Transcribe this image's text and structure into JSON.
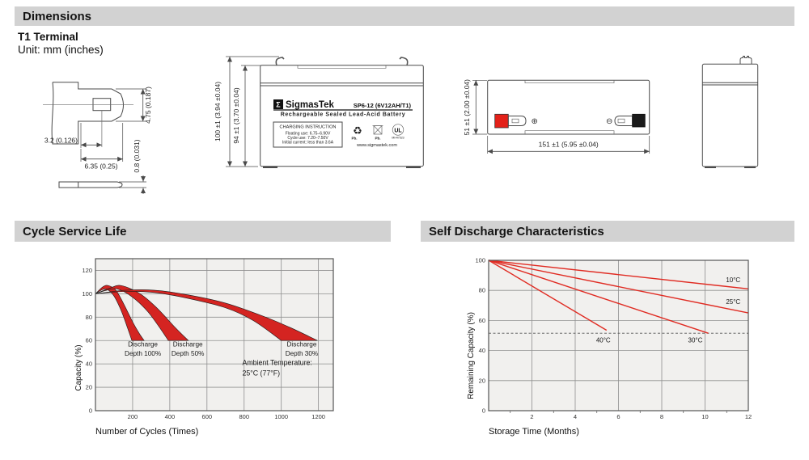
{
  "page": {
    "dimensions_header": "Dimensions",
    "terminal_type": "T1 Terminal",
    "unit_note": "Unit: mm (inches)",
    "cycle_header": "Cycle Service Life",
    "self_discharge_header": "Self Discharge Characteristics"
  },
  "terminal_drawing": {
    "dim_blade_height": "4.75 (0.187)",
    "dim_hole_offset": "3.2 (0.126)",
    "dim_blade_length": "6.35 (0.25)",
    "dim_thickness": "0.8 (0.031)"
  },
  "front_view": {
    "dim_total_height": "100 ±1 (3.94 ±0.04)",
    "dim_body_height": "94 ±1 (3.70 ±0.04)",
    "brand_sigma": "Σ",
    "brand": "SigmasTek",
    "model": "SP6-12 (6V12AH/T1)",
    "subtitle": "Rechargeable Sealed Lead-Acid Battery",
    "charging_title": "CHARGING INSTRUCTION",
    "charging_line1": "Floating use: 6.75–6.90V",
    "charging_line2": "Cycle use: 7.20–7.50V",
    "charging_line3": "Initial current: less than 3.6A",
    "recycle_pb_label": "Pb.",
    "bin_pb_label": "Pb.",
    "ul_letters": "UL",
    "ul_code": "MH47523",
    "website": "www.sigmastek.com"
  },
  "top_view": {
    "dim_height": "51 ±1 (2.00 ±0.04)",
    "dim_width": "151 ±1 (5.95 ±0.04)",
    "positive_symbol": "⊕",
    "negative_symbol": "⊖"
  },
  "colors": {
    "header_bar": "#d2d2d2",
    "band_red": "#d42421",
    "line_red": "#e02b22",
    "chart_bg": "#f1f0ee",
    "grid": "#8f8f8f",
    "plot_border": "#555555",
    "ink": "#1a1a1a"
  },
  "chart_data": [
    {
      "type": "area",
      "title": "Cycle Service Life",
      "xlabel": "Number of Cycles (Times)",
      "ylabel": "Capacity (%)",
      "xlim": [
        0,
        1280
      ],
      "ylim": [
        0,
        130
      ],
      "xticks": [
        200,
        400,
        600,
        800,
        1000,
        1200
      ],
      "yticks": [
        0,
        20,
        40,
        60,
        80,
        100,
        120
      ],
      "grid": true,
      "legend_position": "none",
      "annotation": {
        "lines": [
          "Ambient Temperature:",
          "25°C (77°F)"
        ],
        "x": 790,
        "y": 39
      },
      "bands": [
        {
          "name": "Discharge Depth 100%",
          "label": [
            "Discharge",
            "Depth 100%"
          ],
          "label_x": 255,
          "label_y": 55,
          "upper": [
            [
              0,
              100
            ],
            [
              40,
              106
            ],
            [
              70,
              107
            ],
            [
              110,
              103
            ],
            [
              150,
              92
            ],
            [
              200,
              76
            ],
            [
              236,
              66
            ],
            [
              262,
              60
            ]
          ],
          "lower": [
            [
              0,
              100
            ],
            [
              30,
              103
            ],
            [
              60,
              104
            ],
            [
              100,
              98
            ],
            [
              140,
              85
            ],
            [
              172,
              71
            ],
            [
              196,
              60
            ]
          ]
        },
        {
          "name": "Discharge Depth 50%",
          "label": [
            "Discharge",
            "Depth 50%"
          ],
          "label_x": 497,
          "label_y": 55,
          "upper": [
            [
              0,
              100
            ],
            [
              80,
              105
            ],
            [
              140,
              107
            ],
            [
              240,
              100
            ],
            [
              330,
              88
            ],
            [
              430,
              71
            ],
            [
              500,
              60
            ]
          ],
          "lower": [
            [
              0,
              100
            ],
            [
              60,
              103
            ],
            [
              120,
              104
            ],
            [
              200,
              97
            ],
            [
              280,
              85
            ],
            [
              350,
              70
            ],
            [
              392,
              60
            ]
          ]
        },
        {
          "name": "Discharge Depth 30%",
          "label": [
            "Discharge",
            "Depth 30%"
          ],
          "label_x": 1110,
          "label_y": 55,
          "upper": [
            [
              0,
              100
            ],
            [
              160,
              103
            ],
            [
              320,
              103
            ],
            [
              500,
              99
            ],
            [
              700,
              92
            ],
            [
              900,
              81
            ],
            [
              1050,
              71
            ],
            [
              1195,
              60
            ]
          ],
          "lower": [
            [
              0,
              100
            ],
            [
              160,
              102
            ],
            [
              320,
              101
            ],
            [
              500,
              96
            ],
            [
              700,
              88
            ],
            [
              850,
              77
            ],
            [
              1000,
              60
            ]
          ]
        }
      ]
    },
    {
      "type": "line",
      "title": "Self Discharge Characteristics",
      "xlabel": "Storage Time (Months)",
      "ylabel": "Remaining Capacity (%)",
      "xlim": [
        0,
        12
      ],
      "ylim": [
        0,
        100
      ],
      "xticks": [
        2,
        4,
        6,
        8,
        10,
        12
      ],
      "minor_xticks": [
        1,
        3,
        5,
        7,
        9,
        11
      ],
      "yticks": [
        0,
        20,
        40,
        60,
        80,
        100
      ],
      "grid": true,
      "reference_line": {
        "y": 51.5,
        "style": "dashed"
      },
      "series": [
        {
          "name": "10°C",
          "points": [
            [
              0,
              100
            ],
            [
              12,
              81
            ]
          ],
          "label_x": 11.3,
          "label_y": 85.5
        },
        {
          "name": "25°C",
          "points": [
            [
              0,
              100
            ],
            [
              12,
              65
            ]
          ],
          "label_x": 11.3,
          "label_y": 71
        },
        {
          "name": "30°C",
          "points": [
            [
              0,
              100
            ],
            [
              10.15,
              51.5
            ]
          ],
          "label_x": 9.55,
          "label_y": 45.5
        },
        {
          "name": "40°C",
          "points": [
            [
              0,
              100
            ],
            [
              5.45,
              53.5
            ]
          ],
          "label_x": 5.3,
          "label_y": 45.5
        }
      ]
    }
  ]
}
